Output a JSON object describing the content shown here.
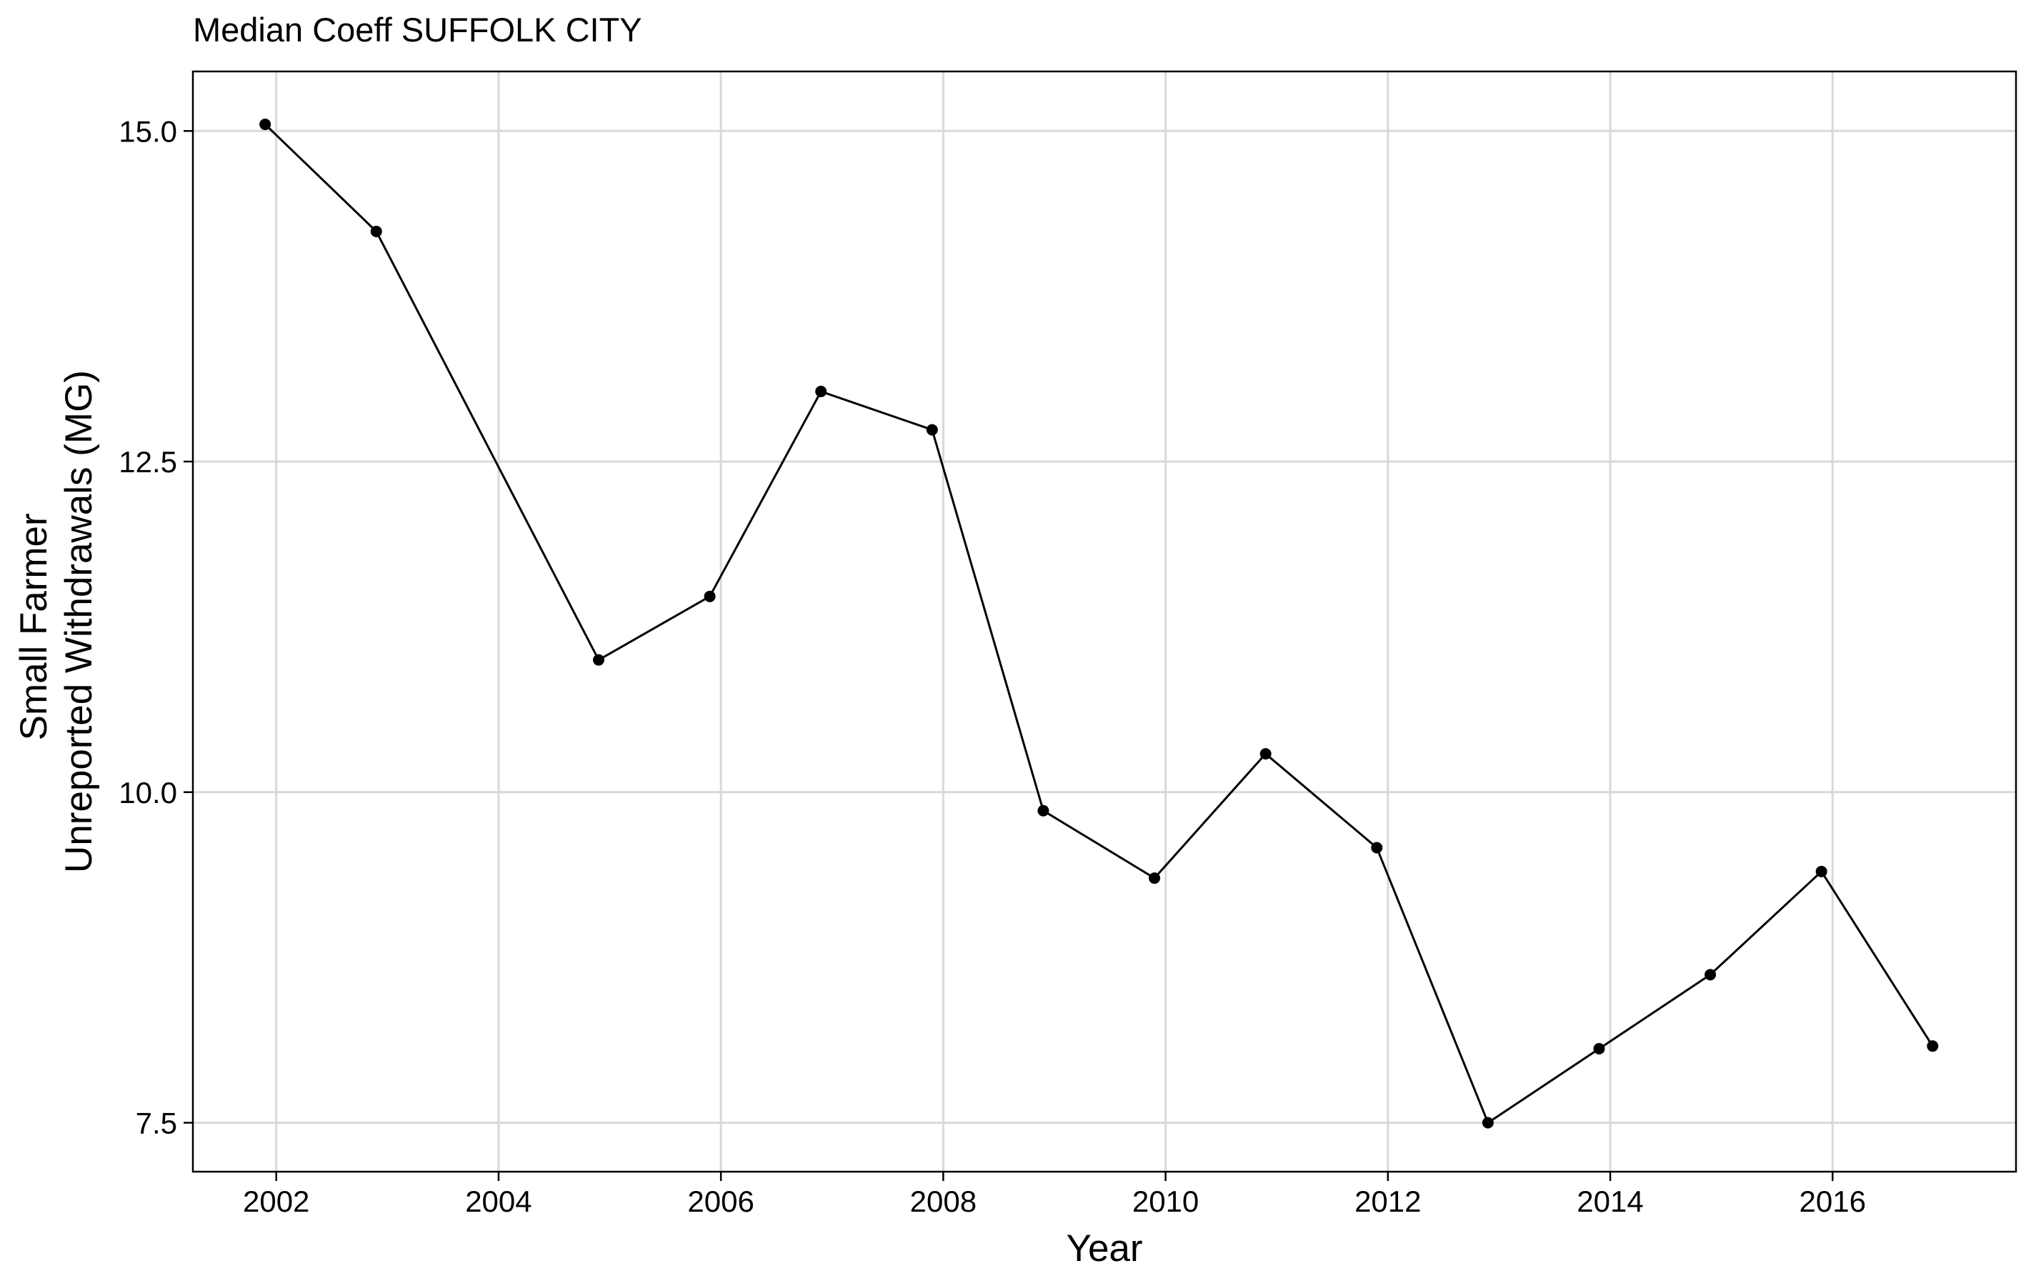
{
  "chart_data": {
    "type": "line",
    "title": "Median Coeff SUFFOLK CITY",
    "xlabel": "Year",
    "ylabel": [
      "Small Farmer",
      "Unreported Withdrawals (MG)"
    ],
    "xlim": [
      2001.25,
      2017.65
    ],
    "ylim": [
      7.13,
      15.45
    ],
    "x_ticks": [
      2002,
      2004,
      2006,
      2008,
      2010,
      2012,
      2014,
      2016
    ],
    "y_ticks": [
      7.5,
      10.0,
      12.5,
      15.0
    ],
    "y_tick_labels": [
      "7.5",
      "10.0",
      "12.5",
      "15.0"
    ],
    "grid": true,
    "series": [
      {
        "x": [
          2001.9,
          2002.9,
          2004.9,
          2005.9,
          2006.9,
          2007.9,
          2008.9,
          2009.9,
          2010.9,
          2011.9,
          2012.9,
          2013.9,
          2014.9,
          2015.9,
          2016.9
        ],
        "y": [
          15.05,
          14.24,
          11.0,
          11.48,
          13.03,
          12.74,
          9.86,
          9.35,
          10.29,
          9.58,
          7.5,
          8.06,
          8.62,
          9.4,
          8.08
        ]
      }
    ]
  }
}
